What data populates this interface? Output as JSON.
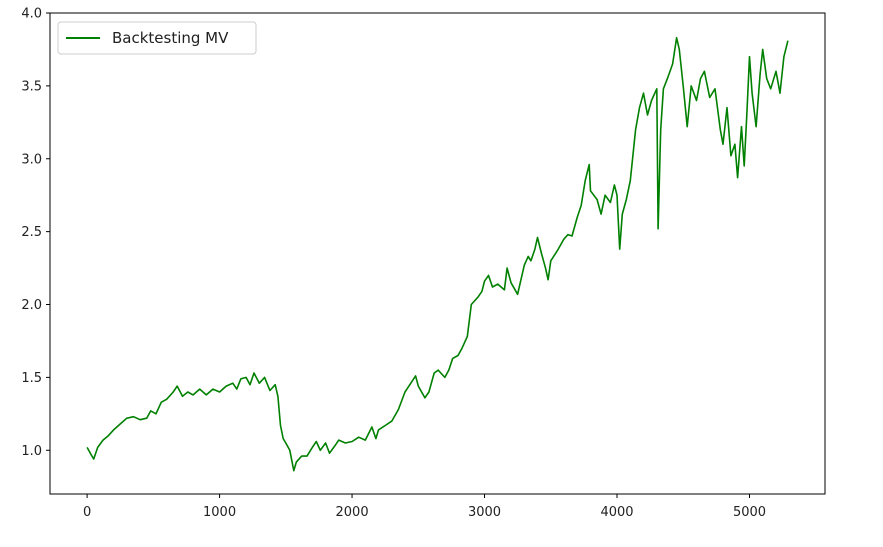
{
  "chart_data": {
    "type": "line",
    "title": "",
    "xlabel": "",
    "ylabel": "",
    "xlim": [
      -280,
      5570
    ],
    "ylim": [
      0.7,
      4.0
    ],
    "x_ticks": [
      0,
      1000,
      2000,
      3000,
      4000,
      5000
    ],
    "x_tick_labels": [
      "0",
      "1000",
      "2000",
      "3000",
      "4000",
      "5000"
    ],
    "y_ticks": [
      1.0,
      1.5,
      2.0,
      2.5,
      3.0,
      3.5,
      4.0
    ],
    "y_tick_labels": [
      "1.0",
      "1.5",
      "2.0",
      "2.5",
      "3.0",
      "3.5",
      "4.0"
    ],
    "grid": false,
    "legend_position": "upper left",
    "series": [
      {
        "name": "Backtesting MV",
        "color": "#008000",
        "points": [
          [
            0,
            1.02
          ],
          [
            30,
            0.97
          ],
          [
            50,
            0.94
          ],
          [
            80,
            1.02
          ],
          [
            120,
            1.07
          ],
          [
            160,
            1.1
          ],
          [
            200,
            1.14
          ],
          [
            250,
            1.18
          ],
          [
            300,
            1.22
          ],
          [
            350,
            1.23
          ],
          [
            400,
            1.21
          ],
          [
            450,
            1.22
          ],
          [
            480,
            1.27
          ],
          [
            520,
            1.25
          ],
          [
            560,
            1.33
          ],
          [
            600,
            1.35
          ],
          [
            650,
            1.4
          ],
          [
            680,
            1.44
          ],
          [
            720,
            1.37
          ],
          [
            760,
            1.4
          ],
          [
            800,
            1.38
          ],
          [
            850,
            1.42
          ],
          [
            900,
            1.38
          ],
          [
            950,
            1.42
          ],
          [
            1000,
            1.4
          ],
          [
            1050,
            1.44
          ],
          [
            1100,
            1.46
          ],
          [
            1130,
            1.42
          ],
          [
            1160,
            1.49
          ],
          [
            1200,
            1.5
          ],
          [
            1230,
            1.45
          ],
          [
            1260,
            1.53
          ],
          [
            1300,
            1.46
          ],
          [
            1340,
            1.5
          ],
          [
            1380,
            1.41
          ],
          [
            1420,
            1.45
          ],
          [
            1440,
            1.37
          ],
          [
            1460,
            1.17
          ],
          [
            1480,
            1.08
          ],
          [
            1500,
            1.05
          ],
          [
            1530,
            1.0
          ],
          [
            1560,
            0.86
          ],
          [
            1580,
            0.92
          ],
          [
            1620,
            0.96
          ],
          [
            1660,
            0.96
          ],
          [
            1700,
            1.02
          ],
          [
            1730,
            1.06
          ],
          [
            1760,
            1.0
          ],
          [
            1800,
            1.05
          ],
          [
            1830,
            0.98
          ],
          [
            1870,
            1.03
          ],
          [
            1900,
            1.07
          ],
          [
            1950,
            1.05
          ],
          [
            2000,
            1.06
          ],
          [
            2050,
            1.09
          ],
          [
            2100,
            1.07
          ],
          [
            2150,
            1.16
          ],
          [
            2180,
            1.08
          ],
          [
            2200,
            1.14
          ],
          [
            2250,
            1.17
          ],
          [
            2300,
            1.2
          ],
          [
            2350,
            1.28
          ],
          [
            2400,
            1.4
          ],
          [
            2450,
            1.47
          ],
          [
            2480,
            1.51
          ],
          [
            2500,
            1.44
          ],
          [
            2550,
            1.36
          ],
          [
            2580,
            1.4
          ],
          [
            2620,
            1.53
          ],
          [
            2650,
            1.55
          ],
          [
            2700,
            1.5
          ],
          [
            2730,
            1.55
          ],
          [
            2760,
            1.63
          ],
          [
            2800,
            1.65
          ],
          [
            2830,
            1.7
          ],
          [
            2870,
            1.78
          ],
          [
            2900,
            2.0
          ],
          [
            2950,
            2.05
          ],
          [
            2980,
            2.09
          ],
          [
            3000,
            2.16
          ],
          [
            3030,
            2.2
          ],
          [
            3060,
            2.12
          ],
          [
            3100,
            2.14
          ],
          [
            3150,
            2.1
          ],
          [
            3170,
            2.25
          ],
          [
            3200,
            2.15
          ],
          [
            3250,
            2.07
          ],
          [
            3300,
            2.27
          ],
          [
            3330,
            2.33
          ],
          [
            3350,
            2.3
          ],
          [
            3380,
            2.38
          ],
          [
            3400,
            2.46
          ],
          [
            3430,
            2.35
          ],
          [
            3460,
            2.25
          ],
          [
            3480,
            2.17
          ],
          [
            3500,
            2.3
          ],
          [
            3550,
            2.37
          ],
          [
            3600,
            2.45
          ],
          [
            3630,
            2.48
          ],
          [
            3660,
            2.47
          ],
          [
            3700,
            2.6
          ],
          [
            3730,
            2.68
          ],
          [
            3760,
            2.85
          ],
          [
            3790,
            2.96
          ],
          [
            3800,
            2.78
          ],
          [
            3850,
            2.72
          ],
          [
            3880,
            2.62
          ],
          [
            3910,
            2.75
          ],
          [
            3950,
            2.7
          ],
          [
            3980,
            2.82
          ],
          [
            4000,
            2.75
          ],
          [
            4020,
            2.38
          ],
          [
            4040,
            2.62
          ],
          [
            4070,
            2.72
          ],
          [
            4100,
            2.85
          ],
          [
            4140,
            3.2
          ],
          [
            4170,
            3.35
          ],
          [
            4200,
            3.45
          ],
          [
            4230,
            3.3
          ],
          [
            4260,
            3.4
          ],
          [
            4300,
            3.48
          ],
          [
            4310,
            2.52
          ],
          [
            4330,
            3.2
          ],
          [
            4350,
            3.48
          ],
          [
            4380,
            3.55
          ],
          [
            4420,
            3.65
          ],
          [
            4450,
            3.83
          ],
          [
            4470,
            3.75
          ],
          [
            4500,
            3.5
          ],
          [
            4530,
            3.22
          ],
          [
            4560,
            3.5
          ],
          [
            4600,
            3.4
          ],
          [
            4630,
            3.55
          ],
          [
            4660,
            3.6
          ],
          [
            4700,
            3.42
          ],
          [
            4740,
            3.48
          ],
          [
            4780,
            3.2
          ],
          [
            4800,
            3.1
          ],
          [
            4830,
            3.35
          ],
          [
            4860,
            3.02
          ],
          [
            4890,
            3.1
          ],
          [
            4910,
            2.87
          ],
          [
            4940,
            3.22
          ],
          [
            4960,
            2.95
          ],
          [
            4980,
            3.3
          ],
          [
            5000,
            3.7
          ],
          [
            5020,
            3.45
          ],
          [
            5050,
            3.22
          ],
          [
            5080,
            3.58
          ],
          [
            5100,
            3.75
          ],
          [
            5130,
            3.55
          ],
          [
            5160,
            3.48
          ],
          [
            5200,
            3.6
          ],
          [
            5230,
            3.45
          ],
          [
            5260,
            3.7
          ],
          [
            5290,
            3.81
          ]
        ]
      }
    ]
  }
}
